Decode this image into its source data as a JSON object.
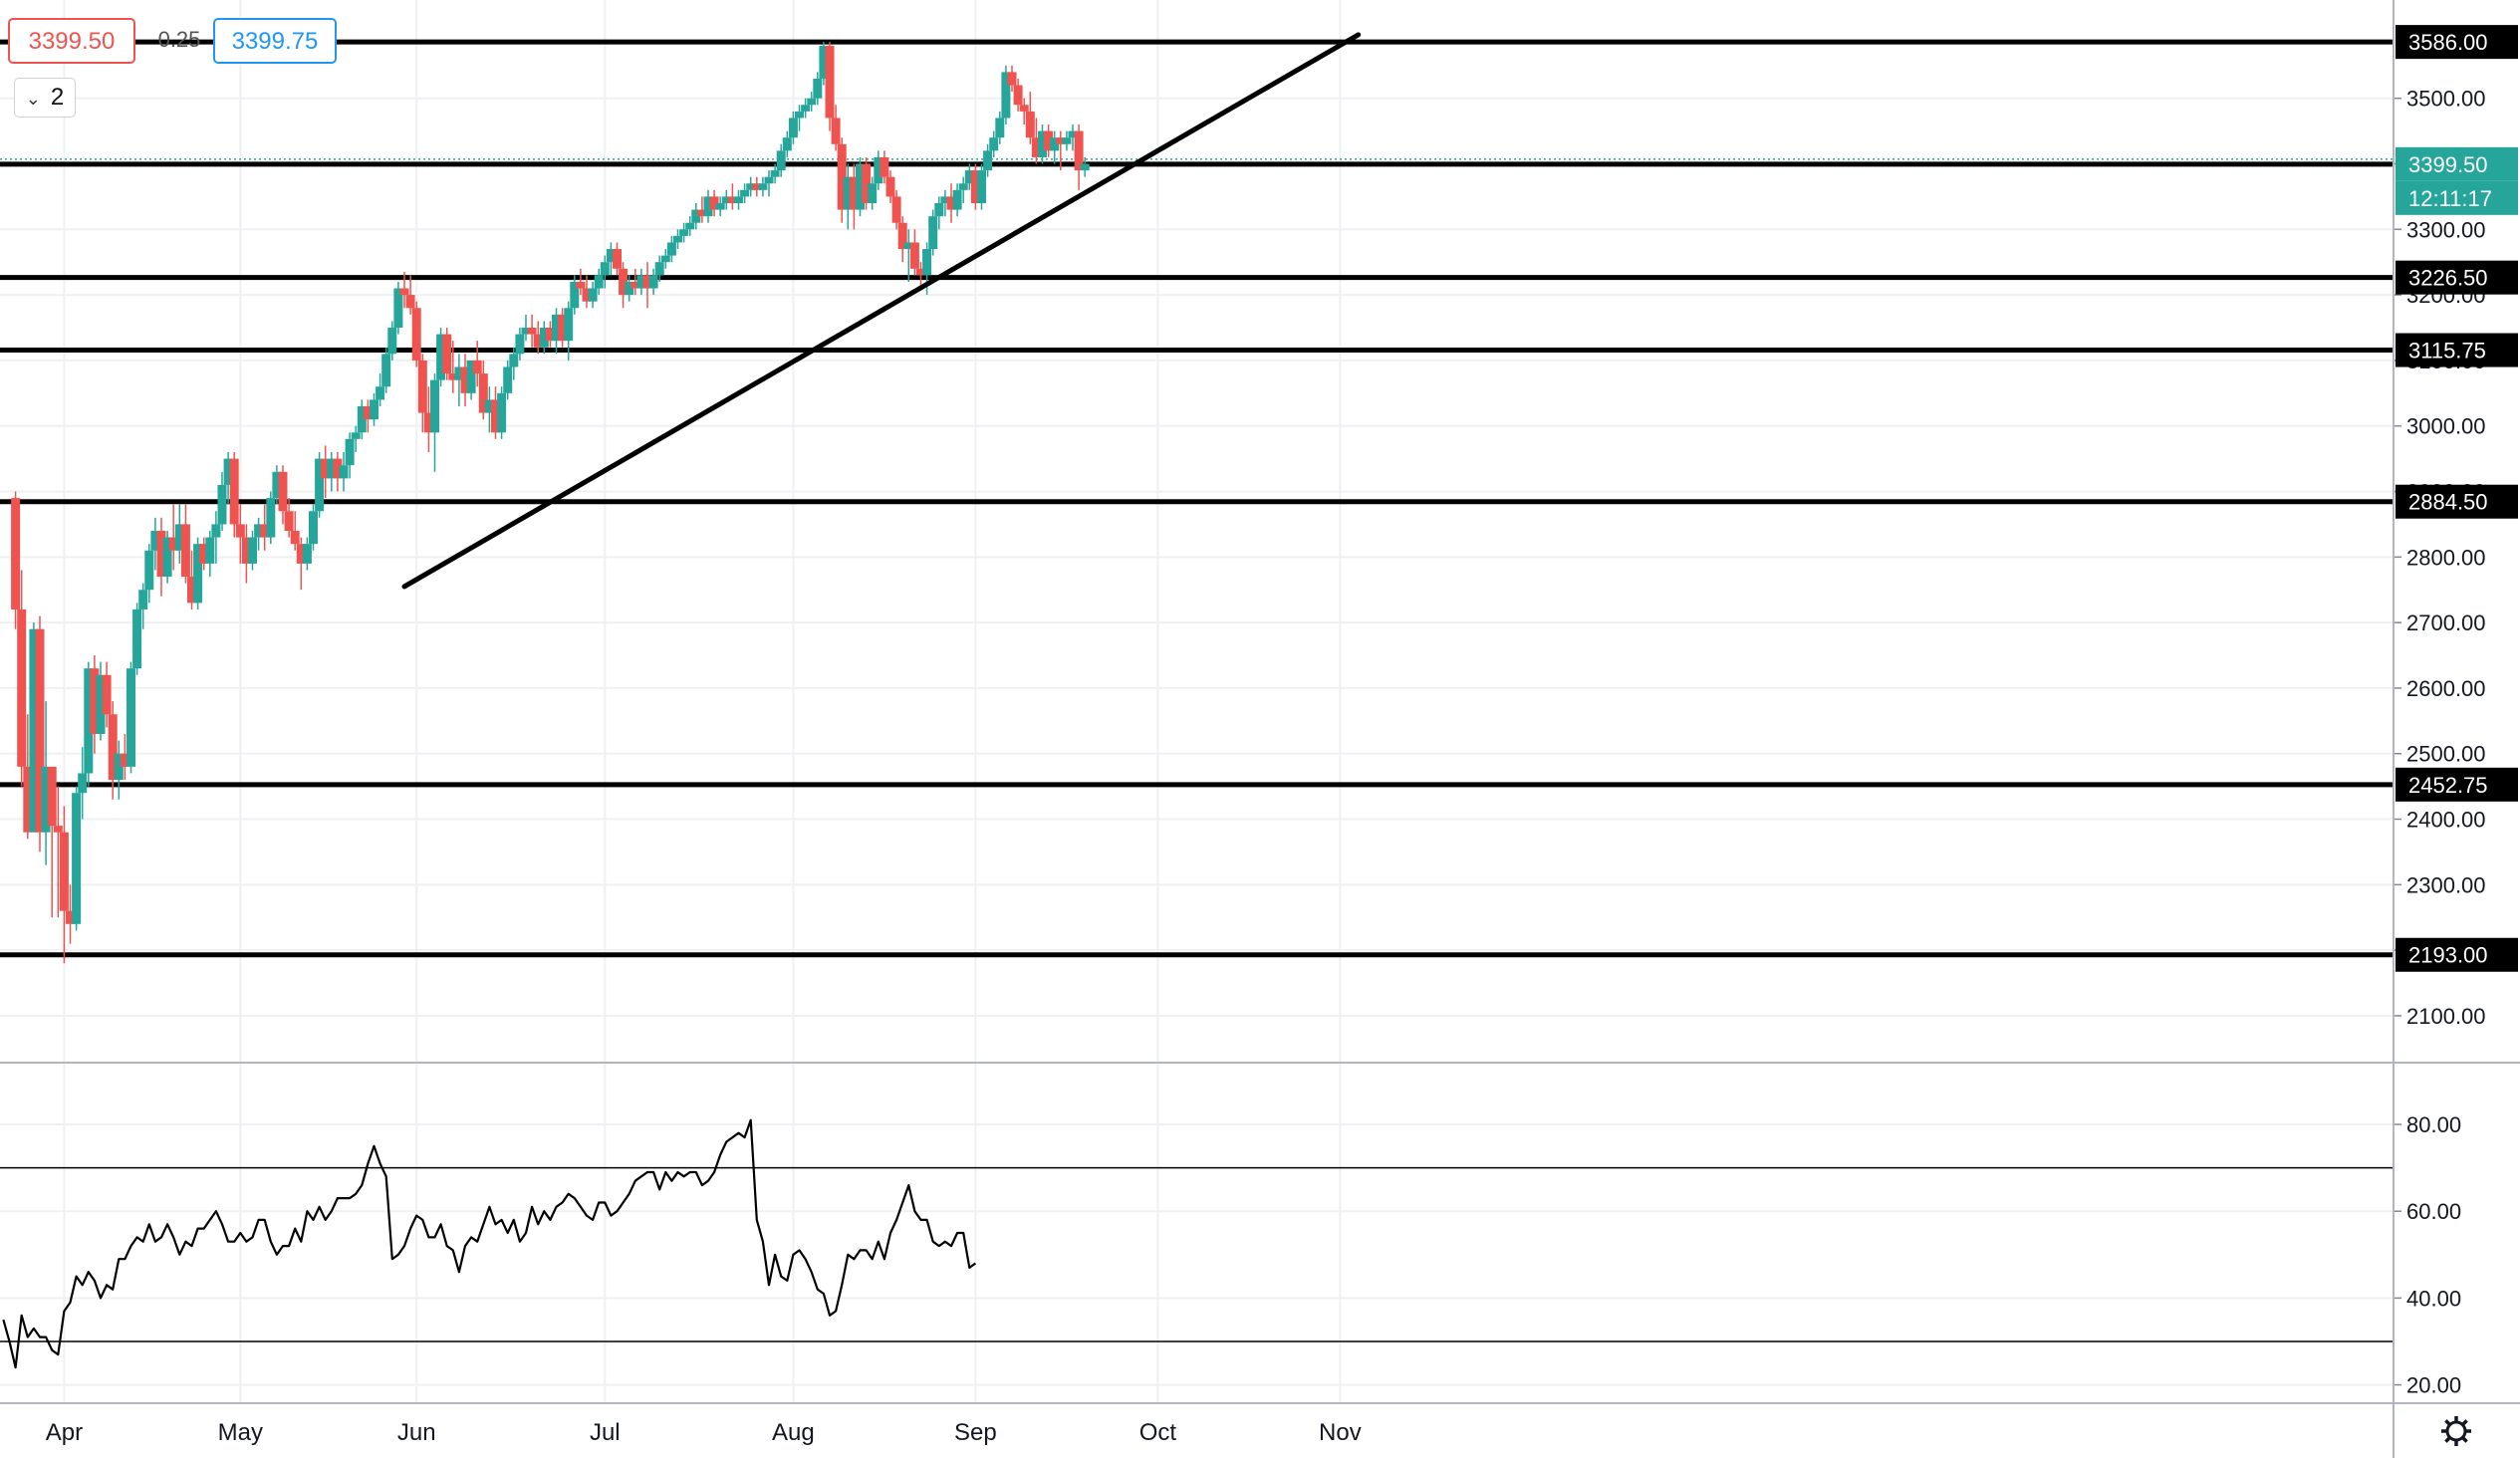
{
  "toolbar": {
    "sell_price": "3399.50",
    "spread": "0.25",
    "buy_price": "3399.75",
    "interval_count": "2"
  },
  "colors": {
    "up": "#26a69a",
    "down": "#ef5350",
    "lines": "#000000",
    "current_price_bg": "#26a69a",
    "grid": "#eef0f3"
  },
  "chart_data": [
    {
      "type": "candlestick",
      "price_axis": {
        "ylim": [
          2030,
          3650
        ],
        "ticks": [
          2100,
          2200,
          2300,
          2400,
          2500,
          2600,
          2700,
          2800,
          2900,
          3000,
          3100,
          3200,
          3300,
          3400,
          3500
        ]
      },
      "time_axis": {
        "labels": [
          "Apr",
          "May",
          "Jun",
          "Jul",
          "Aug",
          "Sep",
          "Oct",
          "Nov"
        ],
        "label_sessions": [
          9,
          38,
          67,
          98,
          129,
          159,
          189,
          219
        ]
      },
      "horizontal_levels": [
        "3586.00",
        "3399.50",
        "3226.50",
        "3115.75",
        "2884.50",
        "2452.75",
        "2193.00"
      ],
      "current_price": "3399.50",
      "countdown": "12:11:17",
      "trend_lines": [
        {
          "from": [
            65,
            2755
          ],
          "to": [
            222,
            3597
          ]
        }
      ],
      "ohlc": [
        [
          2890,
          2900,
          2690,
          2720
        ],
        [
          2720,
          2780,
          2450,
          2480
        ],
        [
          2480,
          2560,
          2370,
          2380
        ],
        [
          2380,
          2700,
          2380,
          2690
        ],
        [
          2690,
          2710,
          2350,
          2380
        ],
        [
          2380,
          2580,
          2330,
          2480
        ],
        [
          2480,
          2480,
          2250,
          2390
        ],
        [
          2390,
          2450,
          2250,
          2380
        ],
        [
          2380,
          2420,
          2180,
          2260
        ],
        [
          2260,
          2300,
          2210,
          2240
        ],
        [
          2240,
          2450,
          2230,
          2440
        ],
        [
          2440,
          2510,
          2400,
          2470
        ],
        [
          2470,
          2640,
          2450,
          2630
        ],
        [
          2630,
          2650,
          2500,
          2530
        ],
        [
          2530,
          2640,
          2520,
          2620
        ],
        [
          2620,
          2640,
          2540,
          2560
        ],
        [
          2560,
          2580,
          2430,
          2460
        ],
        [
          2460,
          2520,
          2430,
          2500
        ],
        [
          2500,
          2530,
          2460,
          2480
        ],
        [
          2480,
          2640,
          2470,
          2630
        ],
        [
          2630,
          2730,
          2620,
          2720
        ],
        [
          2720,
          2760,
          2690,
          2750
        ],
        [
          2750,
          2820,
          2730,
          2810
        ],
        [
          2810,
          2860,
          2780,
          2840
        ],
        [
          2840,
          2860,
          2740,
          2770
        ],
        [
          2770,
          2840,
          2760,
          2830
        ],
        [
          2830,
          2880,
          2780,
          2810
        ],
        [
          2810,
          2880,
          2790,
          2850
        ],
        [
          2850,
          2880,
          2760,
          2770
        ],
        [
          2770,
          2810,
          2720,
          2730
        ],
        [
          2730,
          2830,
          2720,
          2820
        ],
        [
          2820,
          2830,
          2780,
          2790
        ],
        [
          2790,
          2840,
          2770,
          2830
        ],
        [
          2830,
          2870,
          2790,
          2850
        ],
        [
          2850,
          2930,
          2840,
          2910
        ],
        [
          2910,
          2960,
          2880,
          2950
        ],
        [
          2950,
          2960,
          2830,
          2850
        ],
        [
          2850,
          2880,
          2790,
          2830
        ],
        [
          2830,
          2850,
          2760,
          2790
        ],
        [
          2790,
          2840,
          2780,
          2830
        ],
        [
          2830,
          2860,
          2810,
          2850
        ],
        [
          2850,
          2880,
          2810,
          2830
        ],
        [
          2830,
          2900,
          2820,
          2890
        ],
        [
          2890,
          2940,
          2880,
          2930
        ],
        [
          2930,
          2940,
          2850,
          2870
        ],
        [
          2870,
          2890,
          2830,
          2840
        ],
        [
          2840,
          2870,
          2810,
          2820
        ],
        [
          2820,
          2830,
          2750,
          2790
        ],
        [
          2790,
          2830,
          2780,
          2820
        ],
        [
          2820,
          2880,
          2810,
          2870
        ],
        [
          2870,
          2960,
          2860,
          2950
        ],
        [
          2950,
          2970,
          2890,
          2920
        ],
        [
          2920,
          2960,
          2900,
          2950
        ],
        [
          2950,
          2960,
          2900,
          2920
        ],
        [
          2920,
          2960,
          2900,
          2940
        ],
        [
          2940,
          2990,
          2920,
          2980
        ],
        [
          2980,
          3000,
          2960,
          2990
        ],
        [
          2990,
          3040,
          2980,
          3030
        ],
        [
          3030,
          3040,
          2990,
          3010
        ],
        [
          3010,
          3050,
          3000,
          3040
        ],
        [
          3040,
          3080,
          3030,
          3060
        ],
        [
          3060,
          3120,
          3050,
          3110
        ],
        [
          3110,
          3160,
          3100,
          3150
        ],
        [
          3150,
          3220,
          3140,
          3210
        ],
        [
          3210,
          3235,
          3180,
          3200
        ],
        [
          3200,
          3230,
          3170,
          3180
        ],
        [
          3180,
          3190,
          3090,
          3100
        ],
        [
          3100,
          3110,
          2990,
          3020
        ],
        [
          3020,
          3060,
          2960,
          2990
        ],
        [
          2990,
          3080,
          2930,
          3070
        ],
        [
          3070,
          3150,
          3060,
          3140
        ],
        [
          3140,
          3150,
          3070,
          3080
        ],
        [
          3080,
          3130,
          3050,
          3070
        ],
        [
          3070,
          3110,
          3030,
          3090
        ],
        [
          3090,
          3110,
          3030,
          3050
        ],
        [
          3050,
          3100,
          3040,
          3100
        ],
        [
          3100,
          3130,
          3060,
          3080
        ],
        [
          3080,
          3100,
          3010,
          3020
        ],
        [
          3020,
          3060,
          2990,
          3040
        ],
        [
          3040,
          3060,
          2980,
          2990
        ],
        [
          2990,
          3060,
          2980,
          3050
        ],
        [
          3050,
          3100,
          3040,
          3090
        ],
        [
          3090,
          3120,
          3070,
          3110
        ],
        [
          3110,
          3150,
          3100,
          3140
        ],
        [
          3140,
          3170,
          3130,
          3150
        ],
        [
          3150,
          3170,
          3120,
          3140
        ],
        [
          3140,
          3160,
          3110,
          3120
        ],
        [
          3120,
          3160,
          3110,
          3150
        ],
        [
          3150,
          3160,
          3120,
          3130
        ],
        [
          3130,
          3180,
          3110,
          3170
        ],
        [
          3170,
          3180,
          3120,
          3130
        ],
        [
          3130,
          3190,
          3100,
          3180
        ],
        [
          3180,
          3230,
          3170,
          3220
        ],
        [
          3220,
          3240,
          3200,
          3210
        ],
        [
          3210,
          3230,
          3180,
          3190
        ],
        [
          3190,
          3220,
          3180,
          3210
        ],
        [
          3210,
          3240,
          3200,
          3230
        ],
        [
          3230,
          3260,
          3210,
          3250
        ],
        [
          3250,
          3280,
          3230,
          3270
        ],
        [
          3270,
          3280,
          3230,
          3240
        ],
        [
          3240,
          3250,
          3180,
          3200
        ],
        [
          3200,
          3230,
          3190,
          3220
        ],
        [
          3220,
          3240,
          3200,
          3210
        ],
        [
          3210,
          3240,
          3200,
          3230
        ],
        [
          3230,
          3250,
          3180,
          3210
        ],
        [
          3210,
          3240,
          3200,
          3230
        ],
        [
          3230,
          3260,
          3220,
          3250
        ],
        [
          3250,
          3270,
          3240,
          3260
        ],
        [
          3260,
          3290,
          3250,
          3280
        ],
        [
          3280,
          3300,
          3270,
          3290
        ],
        [
          3290,
          3310,
          3280,
          3300
        ],
        [
          3300,
          3320,
          3290,
          3310
        ],
        [
          3310,
          3340,
          3300,
          3330
        ],
        [
          3330,
          3350,
          3310,
          3320
        ],
        [
          3320,
          3360,
          3310,
          3350
        ],
        [
          3350,
          3360,
          3320,
          3330
        ],
        [
          3330,
          3350,
          3320,
          3340
        ],
        [
          3340,
          3360,
          3330,
          3350
        ],
        [
          3350,
          3370,
          3330,
          3340
        ],
        [
          3340,
          3360,
          3330,
          3350
        ],
        [
          3350,
          3370,
          3340,
          3360
        ],
        [
          3360,
          3380,
          3350,
          3370
        ],
        [
          3370,
          3380,
          3350,
          3360
        ],
        [
          3360,
          3380,
          3350,
          3370
        ],
        [
          3370,
          3390,
          3350,
          3380
        ],
        [
          3380,
          3400,
          3370,
          3390
        ],
        [
          3390,
          3430,
          3380,
          3420
        ],
        [
          3420,
          3450,
          3410,
          3440
        ],
        [
          3440,
          3480,
          3430,
          3470
        ],
        [
          3470,
          3490,
          3450,
          3480
        ],
        [
          3480,
          3500,
          3470,
          3490
        ],
        [
          3490,
          3510,
          3480,
          3500
        ],
        [
          3500,
          3540,
          3490,
          3530
        ],
        [
          3530,
          3586,
          3520,
          3580
        ],
        [
          3580,
          3586,
          3450,
          3470
        ],
        [
          3470,
          3490,
          3420,
          3430
        ],
        [
          3430,
          3440,
          3310,
          3330
        ],
        [
          3330,
          3400,
          3300,
          3380
        ],
        [
          3380,
          3400,
          3300,
          3330
        ],
        [
          3330,
          3410,
          3320,
          3400
        ],
        [
          3400,
          3410,
          3330,
          3340
        ],
        [
          3340,
          3380,
          3330,
          3370
        ],
        [
          3370,
          3420,
          3360,
          3410
        ],
        [
          3410,
          3420,
          3370,
          3380
        ],
        [
          3380,
          3390,
          3340,
          3350
        ],
        [
          3350,
          3360,
          3300,
          3310
        ],
        [
          3310,
          3320,
          3250,
          3270
        ],
        [
          3270,
          3300,
          3220,
          3280
        ],
        [
          3280,
          3300,
          3230,
          3240
        ],
        [
          3240,
          3250,
          3210,
          3230
        ],
        [
          3230,
          3280,
          3200,
          3270
        ],
        [
          3270,
          3330,
          3260,
          3320
        ],
        [
          3320,
          3350,
          3300,
          3340
        ],
        [
          3340,
          3360,
          3320,
          3350
        ],
        [
          3350,
          3370,
          3310,
          3330
        ],
        [
          3330,
          3370,
          3320,
          3360
        ],
        [
          3360,
          3380,
          3340,
          3370
        ],
        [
          3370,
          3400,
          3360,
          3390
        ],
        [
          3390,
          3400,
          3330,
          3340
        ],
        [
          3340,
          3400,
          3330,
          3390
        ],
        [
          3390,
          3430,
          3380,
          3420
        ],
        [
          3420,
          3450,
          3410,
          3440
        ],
        [
          3440,
          3480,
          3430,
          3470
        ],
        [
          3470,
          3550,
          3460,
          3540
        ],
        [
          3540,
          3550,
          3510,
          3520
        ],
        [
          3520,
          3530,
          3480,
          3490
        ],
        [
          3490,
          3500,
          3460,
          3480
        ],
        [
          3480,
          3510,
          3430,
          3440
        ],
        [
          3440,
          3470,
          3400,
          3410
        ],
        [
          3410,
          3460,
          3400,
          3450
        ],
        [
          3450,
          3460,
          3410,
          3420
        ],
        [
          3420,
          3450,
          3400,
          3440
        ],
        [
          3440,
          3450,
          3390,
          3430
        ],
        [
          3430,
          3450,
          3420,
          3440
        ],
        [
          3440,
          3460,
          3420,
          3450
        ],
        [
          3450,
          3460,
          3360,
          3390
        ],
        [
          3390,
          3410,
          3380,
          3400
        ]
      ],
      "x_start_session": 1
    },
    {
      "type": "line",
      "name": "",
      "ylim": [
        16,
        94
      ],
      "ticks": [
        20,
        40,
        60,
        80
      ],
      "levels": [
        70,
        30
      ],
      "x_start_session": -1,
      "values": [
        35,
        30,
        24,
        36,
        31,
        33,
        31,
        31,
        28,
        27,
        37,
        39,
        45,
        43,
        46,
        44,
        40,
        43,
        42,
        49,
        49,
        52,
        54,
        53,
        57,
        53,
        54,
        57,
        54,
        50,
        53,
        52,
        56,
        56,
        58,
        60,
        57,
        53,
        53,
        55,
        53,
        54,
        58,
        58,
        53,
        50,
        52,
        52,
        56,
        53,
        60,
        58,
        61,
        58,
        60,
        63,
        63,
        63,
        64,
        66,
        71,
        75,
        71,
        68,
        49,
        50,
        52,
        56,
        59,
        58,
        54,
        54,
        57,
        52,
        51,
        46,
        52,
        54,
        53,
        57,
        61,
        57,
        58,
        55,
        58,
        53,
        55,
        61,
        57,
        60,
        58,
        61,
        62,
        64,
        63,
        61,
        59,
        58,
        62,
        62,
        59,
        60,
        62,
        64,
        67,
        68,
        69,
        69,
        65,
        69,
        67,
        69,
        68,
        69,
        69,
        66,
        67,
        69,
        73,
        76,
        77,
        78,
        77,
        81,
        58,
        53,
        43,
        50,
        45,
        44,
        50,
        51,
        49,
        46,
        42,
        41,
        36,
        37,
        43,
        50,
        49,
        51,
        51,
        49,
        53,
        49,
        55,
        58,
        62,
        66,
        60,
        58,
        58,
        53,
        52,
        53,
        52,
        55,
        55,
        47,
        48
      ]
    }
  ]
}
